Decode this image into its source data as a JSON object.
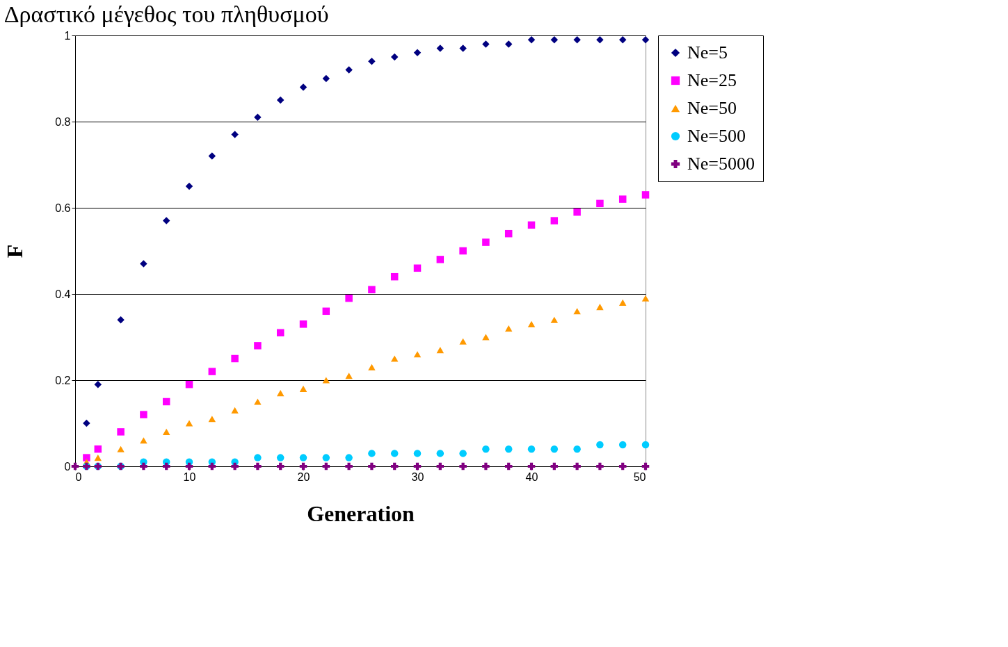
{
  "chart_data": {
    "type": "scatter",
    "title": "Δραστικό μέγεθος του πληθυσμού",
    "xlabel": "Generation",
    "ylabel": "F",
    "x": [
      0,
      1,
      2,
      4,
      6,
      8,
      10,
      12,
      14,
      16,
      18,
      20,
      22,
      24,
      26,
      28,
      30,
      32,
      34,
      36,
      38,
      40,
      42,
      44,
      46,
      48,
      50
    ],
    "series": [
      {
        "name": "Ne=5",
        "color": "#000080",
        "marker": "diamond",
        "values": [
          null,
          0.1,
          0.19,
          0.34,
          0.47,
          0.57,
          0.65,
          0.72,
          0.77,
          0.81,
          0.85,
          0.88,
          0.9,
          0.92,
          0.94,
          0.95,
          0.96,
          0.97,
          0.97,
          0.98,
          0.98,
          0.99,
          0.99,
          0.99,
          0.99,
          0.99,
          0.99
        ]
      },
      {
        "name": "Ne=25",
        "color": "#ff00ff",
        "marker": "square",
        "values": [
          null,
          0.02,
          0.04,
          0.08,
          0.12,
          0.15,
          0.19,
          0.22,
          0.25,
          0.28,
          0.31,
          0.33,
          0.36,
          0.39,
          0.41,
          0.44,
          0.46,
          0.48,
          0.5,
          0.52,
          0.54,
          0.56,
          0.57,
          0.59,
          0.61,
          0.62,
          0.63
        ]
      },
      {
        "name": "Ne=50",
        "color": "#ff9900",
        "marker": "triangle",
        "values": [
          null,
          0.01,
          0.02,
          0.04,
          0.06,
          0.08,
          0.1,
          0.11,
          0.13,
          0.15,
          0.17,
          0.18,
          0.2,
          0.21,
          0.23,
          0.25,
          0.26,
          0.27,
          0.29,
          0.3,
          0.32,
          0.33,
          0.34,
          0.36,
          0.37,
          0.38,
          0.39
        ]
      },
      {
        "name": "Ne=500",
        "color": "#00ccff",
        "marker": "circle",
        "values": [
          null,
          0,
          0,
          0,
          0.01,
          0.01,
          0.01,
          0.01,
          0.01,
          0.02,
          0.02,
          0.02,
          0.02,
          0.02,
          0.03,
          0.03,
          0.03,
          0.03,
          0.03,
          0.04,
          0.04,
          0.04,
          0.04,
          0.04,
          0.05,
          0.05,
          0.05
        ]
      },
      {
        "name": "Ne=5000",
        "color": "#800080",
        "marker": "cross",
        "values": [
          0,
          0,
          0,
          0,
          0,
          0,
          0,
          0,
          0,
          0,
          0,
          0,
          0,
          0,
          0,
          0,
          0,
          0,
          0,
          0,
          0,
          0,
          0,
          0,
          0,
          0,
          0
        ]
      }
    ],
    "xlim": [
      0,
      50
    ],
    "xticks": [
      0,
      10,
      20,
      30,
      40,
      50
    ],
    "ylim": [
      0,
      1
    ],
    "yticks": [
      0,
      0.2,
      0.4,
      0.6,
      0.8,
      1
    ],
    "grid": "y",
    "legend": "right"
  }
}
